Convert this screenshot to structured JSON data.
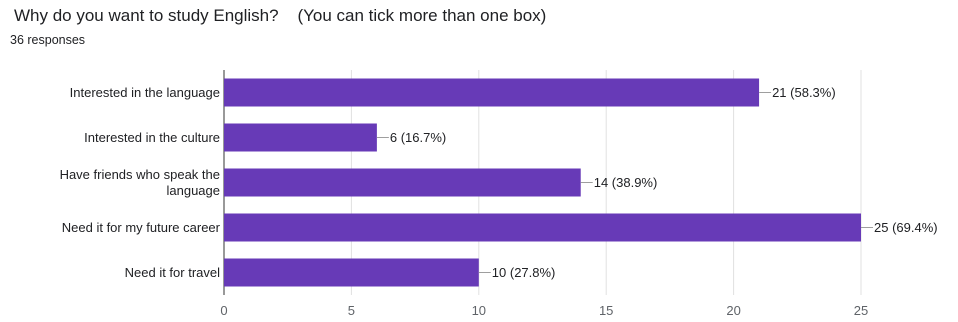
{
  "header": {
    "title": "Why do you want to study English?    (You can tick more than one box)",
    "responses": "36 responses"
  },
  "chart_data": {
    "type": "bar",
    "orientation": "horizontal",
    "categories": [
      "Interested in the language",
      "Interested in the culture",
      "Have friends who speak the language",
      "Need it for my future career",
      "Need it for travel"
    ],
    "category_label_lines": [
      [
        "Interested in the language"
      ],
      [
        "Interested in the culture"
      ],
      [
        "Have friends who speak the",
        "language"
      ],
      [
        "Need it for my future career"
      ],
      [
        "Need it for travel"
      ]
    ],
    "values": [
      21,
      6,
      14,
      25,
      10
    ],
    "data_labels": [
      "21 (58.3%)",
      "6 (16.7%)",
      "14 (38.9%)",
      "25 (69.4%)",
      "10 (27.8%)"
    ],
    "xlim": [
      0,
      25
    ],
    "x_ticks": [
      0,
      5,
      10,
      15,
      20,
      25
    ],
    "grid": true,
    "bar_color": "#673ab7"
  }
}
